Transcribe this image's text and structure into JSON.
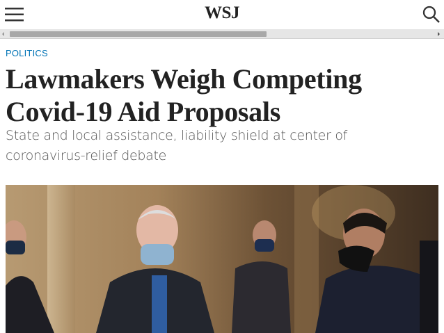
{
  "header": {
    "logo": "WSJ"
  },
  "article": {
    "section": "POLITICS",
    "headline": "Lawmakers Weigh Competing Covid-19 Aid Proposals",
    "subheadline": "State and local assistance, liability shield at center of coronavirus-relief debate"
  }
}
